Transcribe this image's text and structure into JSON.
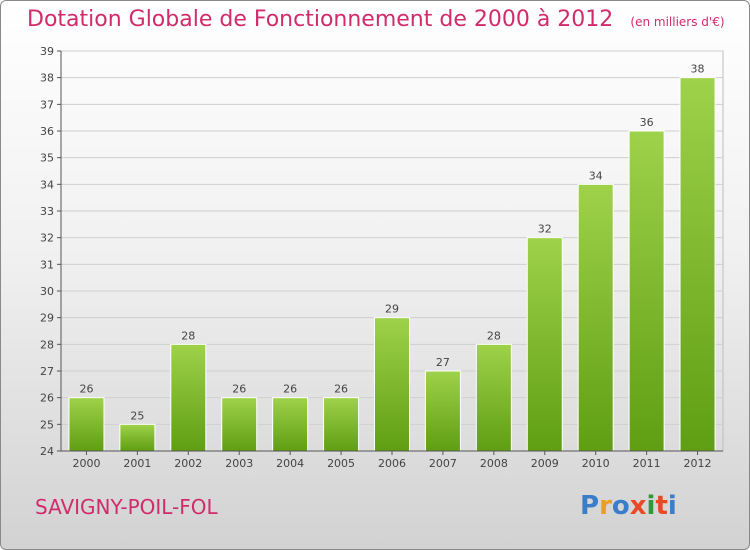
{
  "header": {
    "title": "Dotation Globale de Fonctionnement de 2000 à 2012",
    "unit": "(en milliers d'€)"
  },
  "commune": "SAVIGNY-POIL-FOL",
  "logo": {
    "text": "Proxiti",
    "letter_colors": [
      "#3a7dc9",
      "#e8a020",
      "#3a7dc9",
      "#e84a28",
      "#2f9a3a",
      "#e84a28",
      "#3a7dc9"
    ]
  },
  "colors": {
    "accent": "#d12b6c",
    "bar_top": "#9ed24a",
    "bar_bottom": "#5f9e12"
  },
  "chart_data": {
    "type": "bar",
    "categories": [
      "2000",
      "2001",
      "2002",
      "2003",
      "2004",
      "2005",
      "2006",
      "2007",
      "2008",
      "2009",
      "2010",
      "2011",
      "2012"
    ],
    "values": [
      26,
      25,
      28,
      26,
      26,
      26,
      29,
      27,
      28,
      32,
      34,
      36,
      38
    ],
    "title": "Dotation Globale de Fonctionnement de 2000 à 2012",
    "xlabel": "",
    "ylabel": "",
    "ylim": [
      24,
      39
    ],
    "yticks": [
      24,
      25,
      26,
      27,
      28,
      29,
      30,
      31,
      32,
      33,
      34,
      35,
      36,
      37,
      38,
      39
    ],
    "grid": true
  }
}
